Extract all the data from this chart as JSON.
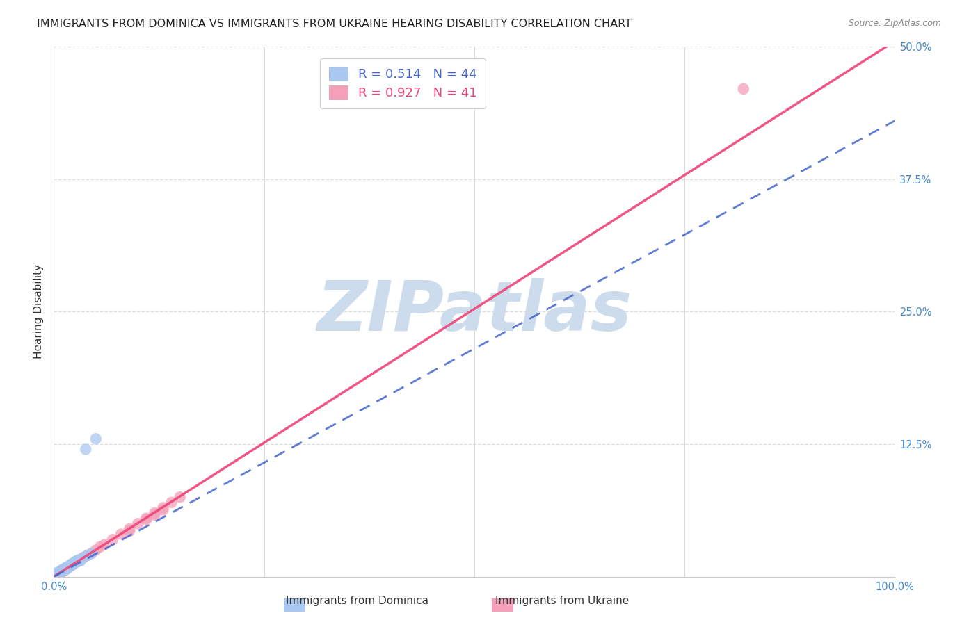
{
  "title": "IMMIGRANTS FROM DOMINICA VS IMMIGRANTS FROM UKRAINE HEARING DISABILITY CORRELATION CHART",
  "source": "Source: ZipAtlas.com",
  "ylabel": "Hearing Disability",
  "xlim": [
    0,
    1.0
  ],
  "ylim": [
    0,
    0.5
  ],
  "xticks": [
    0.0,
    0.25,
    0.5,
    0.75,
    1.0
  ],
  "xticklabels": [
    "0.0%",
    "",
    "",
    "",
    "100.0%"
  ],
  "yticks": [
    0.0,
    0.125,
    0.25,
    0.375,
    0.5
  ],
  "yticklabels": [
    "",
    "12.5%",
    "25.0%",
    "37.5%",
    "50.0%"
  ],
  "dominica_R": 0.514,
  "dominica_N": 44,
  "ukraine_R": 0.927,
  "ukraine_N": 41,
  "dominica_color": "#aac8f0",
  "ukraine_color": "#f4a0b8",
  "dominica_line_color": "#4466cc",
  "ukraine_line_color": "#ee4477",
  "watermark_text": "ZIPatlas",
  "watermark_color": "#ccdcec",
  "background_color": "#ffffff",
  "grid_color": "#dddddd",
  "tick_color": "#4488cc",
  "ylabel_color": "#333333",
  "title_color": "#222222",
  "source_color": "#888888",
  "dom_scatter_x": [
    0.002,
    0.003,
    0.004,
    0.003,
    0.005,
    0.004,
    0.005,
    0.006,
    0.006,
    0.007,
    0.007,
    0.008,
    0.008,
    0.009,
    0.009,
    0.01,
    0.01,
    0.011,
    0.012,
    0.013,
    0.014,
    0.015,
    0.015,
    0.016,
    0.017,
    0.018,
    0.018,
    0.019,
    0.02,
    0.021,
    0.022,
    0.023,
    0.024,
    0.025,
    0.026,
    0.027,
    0.028,
    0.03,
    0.032,
    0.035,
    0.038,
    0.04,
    0.045,
    0.05
  ],
  "dom_scatter_y": [
    0.001,
    0.002,
    0.001,
    0.003,
    0.002,
    0.003,
    0.004,
    0.003,
    0.004,
    0.004,
    0.003,
    0.005,
    0.004,
    0.005,
    0.006,
    0.005,
    0.006,
    0.007,
    0.006,
    0.007,
    0.008,
    0.007,
    0.009,
    0.008,
    0.009,
    0.009,
    0.01,
    0.01,
    0.011,
    0.012,
    0.011,
    0.012,
    0.013,
    0.013,
    0.014,
    0.015,
    0.014,
    0.016,
    0.015,
    0.018,
    0.12,
    0.02,
    0.022,
    0.13
  ],
  "ukr_scatter_x": [
    0.002,
    0.003,
    0.004,
    0.005,
    0.006,
    0.007,
    0.008,
    0.009,
    0.01,
    0.011,
    0.012,
    0.013,
    0.014,
    0.015,
    0.016,
    0.018,
    0.02,
    0.022,
    0.025,
    0.028,
    0.03,
    0.035,
    0.04,
    0.045,
    0.05,
    0.055,
    0.06,
    0.07,
    0.08,
    0.09,
    0.1,
    0.11,
    0.12,
    0.13,
    0.14,
    0.15,
    0.12,
    0.13,
    0.11,
    0.09,
    0.82
  ],
  "ukr_scatter_y": [
    0.001,
    0.001,
    0.002,
    0.002,
    0.003,
    0.003,
    0.004,
    0.004,
    0.005,
    0.005,
    0.006,
    0.006,
    0.007,
    0.007,
    0.008,
    0.009,
    0.01,
    0.011,
    0.013,
    0.014,
    0.015,
    0.018,
    0.02,
    0.022,
    0.025,
    0.028,
    0.03,
    0.035,
    0.04,
    0.045,
    0.05,
    0.055,
    0.06,
    0.065,
    0.07,
    0.075,
    0.058,
    0.063,
    0.054,
    0.043,
    0.46
  ],
  "dom_line_x0": 0.0,
  "dom_line_y0": 0.0,
  "dom_line_x1": 1.0,
  "dom_line_y1": 0.43,
  "ukr_line_x0": 0.0,
  "ukr_line_y0": 0.0,
  "ukr_line_x1": 1.0,
  "ukr_line_y1": 0.505
}
